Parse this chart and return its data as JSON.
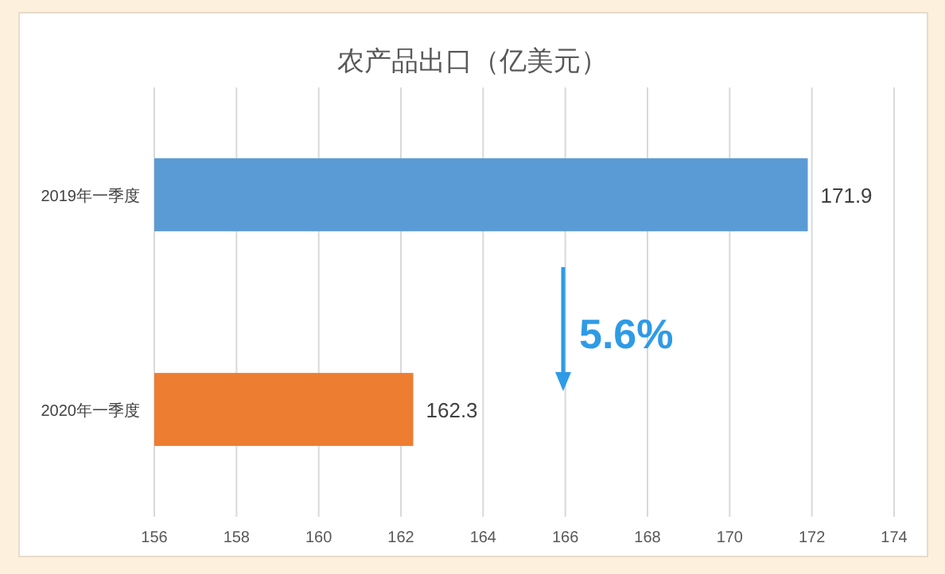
{
  "chart_data": {
    "type": "bar",
    "orientation": "horizontal",
    "title": "农产品出口（亿美元）",
    "categories": [
      "2019年一季度",
      "2020年一季度"
    ],
    "values": [
      171.9,
      162.3
    ],
    "colors": [
      "#5b9bd5",
      "#ed7d31"
    ],
    "xlim": [
      156,
      174
    ],
    "xticks": [
      156,
      158,
      160,
      162,
      164,
      166,
      168,
      170,
      172,
      174
    ],
    "grid": "x",
    "data_labels": true,
    "annotations": [
      "5.6%"
    ]
  }
}
